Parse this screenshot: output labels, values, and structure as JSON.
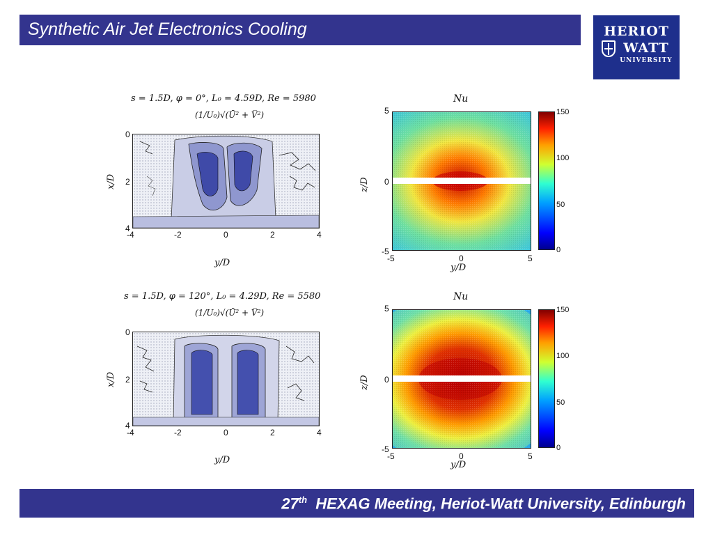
{
  "slide": {
    "title": "Synthetic Air Jet Electronics Cooling",
    "logo_line1": "HERIOT",
    "logo_line2": "WATT",
    "logo_line3": "UNIVERSITY",
    "footer_prefix": "27",
    "footer_sup": "th",
    "footer_rest": "HEXAG Meeting, Heriot-Watt University, Edinburgh",
    "colors": {
      "bar": "#33348e",
      "logo": "#1e2f8c"
    }
  },
  "figures": [
    {
      "velocity_plot": {
        "title_line1": "s = 1.5D, φ = 0°, L₀ = 4.59D, Re = 5980",
        "title_line2": "(1/U₀)√(Ū² + V̅²)",
        "ylabel": "x/D",
        "xlabel": "y/D",
        "x_ticks": [
          "-4",
          "-2",
          "0",
          "2",
          "4"
        ],
        "y_ticks": [
          "0",
          "2",
          "4"
        ]
      },
      "nu_plot": {
        "title": "Nu",
        "ylabel": "z/D",
        "xlabel": "y/D",
        "x_ticks": [
          "-5",
          "0",
          "5"
        ],
        "y_ticks": [
          "5",
          "0",
          "-5"
        ],
        "colorbar_ticks": [
          "150",
          "100",
          "50",
          "0"
        ]
      }
    },
    {
      "velocity_plot": {
        "title_line1": "s = 1.5D, φ = 120°, L₀ = 4.29D, Re = 5580",
        "title_line2": "(1/U₀)√(Ū² + V̅²)",
        "ylabel": "x/D",
        "xlabel": "y/D",
        "x_ticks": [
          "-4",
          "-2",
          "0",
          "2",
          "4"
        ],
        "y_ticks": [
          "0",
          "2",
          "4"
        ]
      },
      "nu_plot": {
        "title": "Nu",
        "ylabel": "z/D",
        "xlabel": "y/D",
        "x_ticks": [
          "-5",
          "0",
          "5"
        ],
        "y_ticks": [
          "5",
          "0",
          "-5"
        ],
        "colorbar_ticks": [
          "150",
          "100",
          "50",
          "0"
        ]
      }
    }
  ]
}
